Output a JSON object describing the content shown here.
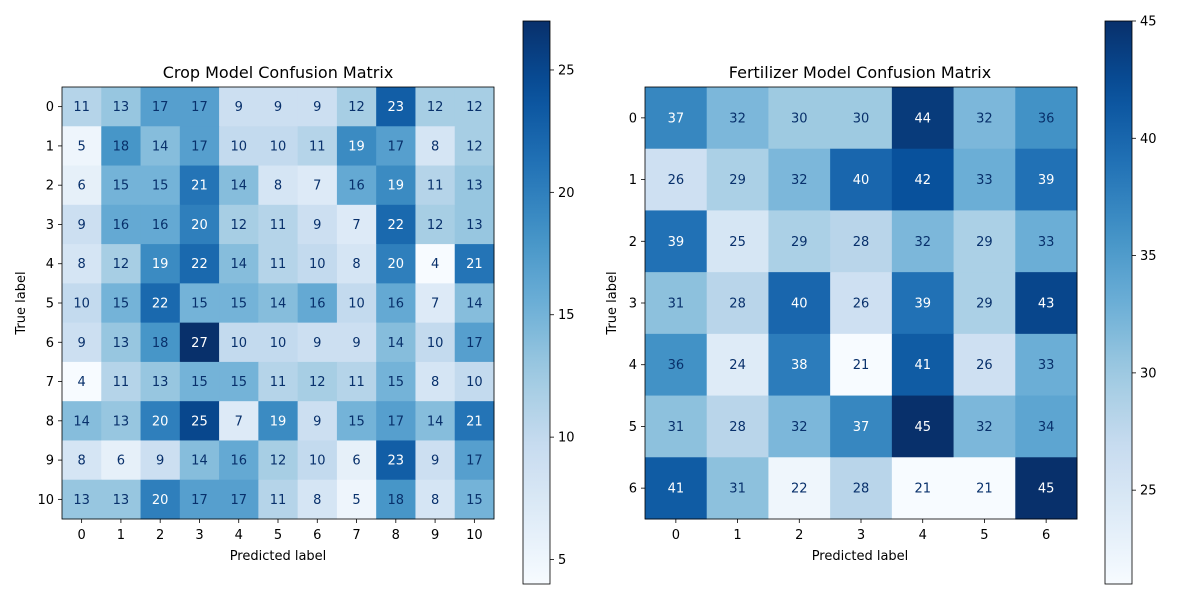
{
  "chart_data": [
    {
      "type": "heatmap",
      "title": "Crop Model Confusion Matrix",
      "xlabel": "Predicted label",
      "ylabel": "True label",
      "x_categories": [
        "0",
        "1",
        "2",
        "3",
        "4",
        "5",
        "6",
        "7",
        "8",
        "9",
        "10"
      ],
      "y_categories": [
        "0",
        "1",
        "2",
        "3",
        "4",
        "5",
        "6",
        "7",
        "8",
        "9",
        "10"
      ],
      "values": [
        [
          11,
          13,
          17,
          17,
          9,
          9,
          9,
          12,
          23,
          12,
          12
        ],
        [
          5,
          18,
          14,
          17,
          10,
          10,
          11,
          19,
          17,
          8,
          12
        ],
        [
          6,
          15,
          15,
          21,
          14,
          8,
          7,
          16,
          19,
          11,
          13
        ],
        [
          9,
          16,
          16,
          20,
          12,
          11,
          9,
          7,
          22,
          12,
          13
        ],
        [
          8,
          12,
          19,
          22,
          14,
          11,
          10,
          8,
          20,
          4,
          21
        ],
        [
          10,
          15,
          22,
          15,
          15,
          14,
          16,
          10,
          16,
          7,
          14
        ],
        [
          9,
          13,
          18,
          27,
          10,
          10,
          9,
          9,
          14,
          10,
          17
        ],
        [
          4,
          11,
          13,
          15,
          15,
          11,
          12,
          11,
          15,
          8,
          10
        ],
        [
          14,
          13,
          20,
          25,
          7,
          19,
          9,
          15,
          17,
          14,
          21
        ],
        [
          8,
          6,
          9,
          14,
          16,
          12,
          10,
          6,
          23,
          9,
          17
        ],
        [
          13,
          13,
          20,
          17,
          17,
          11,
          8,
          5,
          18,
          8,
          15
        ]
      ],
      "colormap": "Blues",
      "vmin": 4,
      "vmax": 27,
      "colorbar_ticks": [
        5,
        10,
        15,
        20,
        25
      ]
    },
    {
      "type": "heatmap",
      "title": "Fertilizer Model Confusion Matrix",
      "xlabel": "Predicted label",
      "ylabel": "True label",
      "x_categories": [
        "0",
        "1",
        "2",
        "3",
        "4",
        "5",
        "6"
      ],
      "y_categories": [
        "0",
        "1",
        "2",
        "3",
        "4",
        "5",
        "6"
      ],
      "values": [
        [
          37,
          32,
          30,
          30,
          44,
          32,
          36
        ],
        [
          26,
          29,
          32,
          40,
          42,
          33,
          39
        ],
        [
          39,
          25,
          29,
          28,
          32,
          29,
          33
        ],
        [
          31,
          28,
          40,
          26,
          39,
          29,
          43
        ],
        [
          36,
          24,
          38,
          21,
          41,
          26,
          33
        ],
        [
          31,
          28,
          32,
          37,
          45,
          32,
          34
        ],
        [
          41,
          31,
          22,
          28,
          21,
          21,
          45
        ]
      ],
      "colormap": "Blues",
      "vmin": 21,
      "vmax": 45,
      "colorbar_ticks": [
        25,
        30,
        35,
        40,
        45
      ]
    }
  ]
}
